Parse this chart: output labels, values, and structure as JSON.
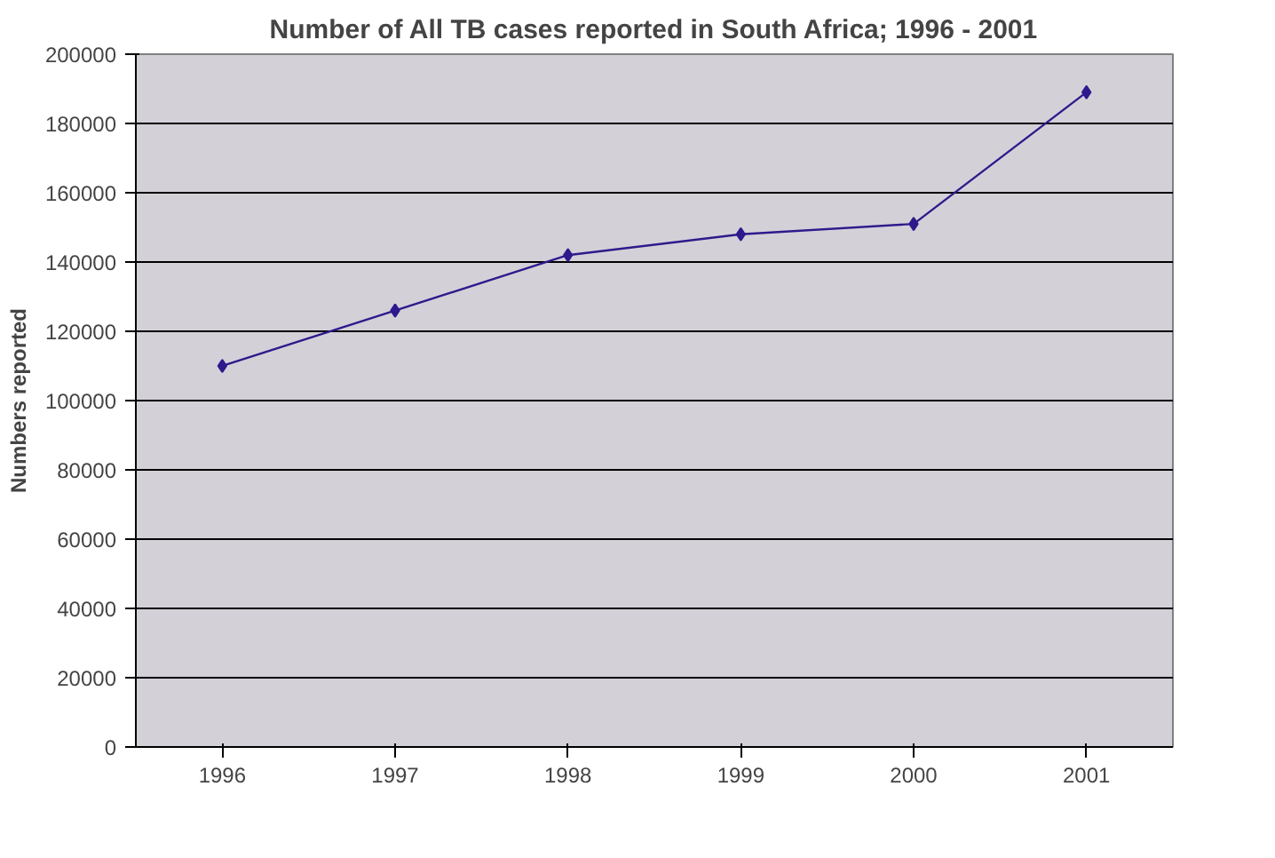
{
  "chart_data": {
    "type": "line",
    "title": "Number of All TB cases reported in South Africa; 1996 - 2001",
    "ylabel": "Numbers reported",
    "categories": [
      "1996",
      "1997",
      "1998",
      "1999",
      "2000",
      "2001"
    ],
    "series": [
      {
        "color": "#2e1a8c",
        "values": [
          110000,
          126000,
          142000,
          148000,
          151000,
          189000
        ]
      }
    ],
    "ylim": [
      0,
      200000
    ],
    "yticks": [
      0,
      20000,
      40000,
      60000,
      80000,
      100000,
      120000,
      140000,
      160000,
      180000,
      200000
    ],
    "grid": "y",
    "marker": "diamond",
    "line_style": "solid"
  }
}
